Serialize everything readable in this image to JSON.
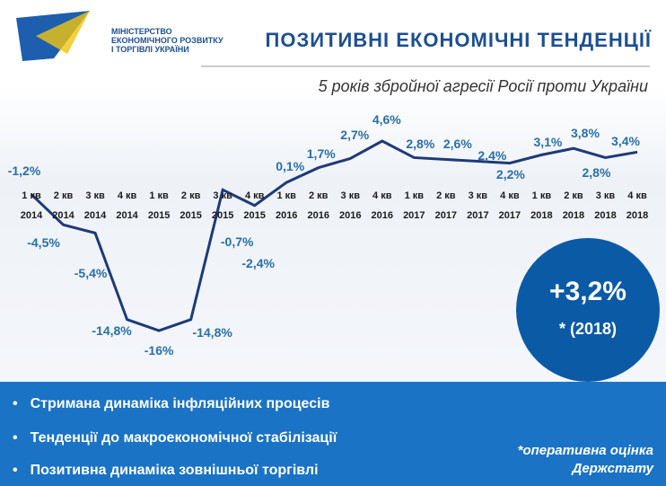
{
  "header": {
    "ministry": [
      "МІНІСТЕРСТВО",
      "ЕКОНОМІЧНОГО РОЗВИТКУ",
      "І ТОРГІВЛІ УКРАЇНИ"
    ]
  },
  "chart_data": {
    "type": "line",
    "title": "ПОЗИТИВНІ ЕКОНОМІЧНІ ТЕНДЕНЦІЇ",
    "subtitle": "5 років збройної агресії Росії проти України",
    "categories": [
      "1 кв 2014",
      "2 кв 2014",
      "3 кв 2014",
      "4 кв 2014",
      "1 кв 2015",
      "2 кв 2015",
      "3 кв 2015",
      "4 кв 2015",
      "1 кв 2016",
      "2 кв 2016",
      "3 кв 2016",
      "4 кв 2016",
      "1 кв 2017",
      "2 кв 2017",
      "3 кв 2017",
      "4 кв 2017",
      "1 кв 2018",
      "2 кв 2018",
      "3 кв 2018",
      "4 кв 2018"
    ],
    "values": [
      -1.2,
      -4.5,
      -5.4,
      -14.8,
      -16,
      -14.8,
      -0.7,
      -2.4,
      0.1,
      1.7,
      2.7,
      4.6,
      2.8,
      2.6,
      2.4,
      2.2,
      3.1,
      3.8,
      2.8,
      3.4
    ],
    "value_labels": [
      "-1,2%",
      "-4,5%",
      "-5,4%",
      "-14,8%",
      "-16%",
      "-14,8%",
      "-0,7%",
      "-2,4%",
      "0,1%",
      "1,7%",
      "2,7%",
      "4,6%",
      "2,8%",
      "2,6%",
      "2,4%",
      "2,2%",
      "3,1%",
      "3,8%",
      "2,8%",
      "3,4%"
    ],
    "color": "#1f3a78"
  },
  "callout": {
    "value": "+3,2%",
    "note": "* (2018)"
  },
  "bullets": [
    "Стримана динаміка інфляційних процесів",
    "Тенденції до макроекономічної стабілізації",
    "Позитивна динаміка зовнішньої торгівлі"
  ],
  "footnote": [
    "*оперативна оцінка",
    "Держстату"
  ]
}
